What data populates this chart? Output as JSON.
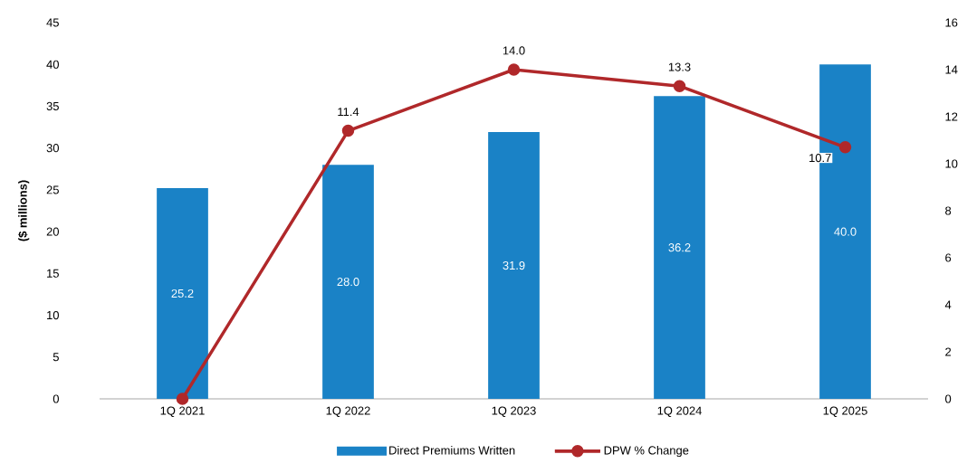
{
  "chart_data": {
    "type": "bar",
    "ylabel": "($ millions)",
    "categories": [
      "1Q 2021",
      "1Q 2022",
      "1Q 2023",
      "1Q 2024",
      "1Q 2025"
    ],
    "series": [
      {
        "name": "Direct Premiums Written",
        "color": "#1a82c6",
        "values": [
          25.2,
          28.0,
          31.9,
          36.2,
          40.0
        ],
        "value_labels": [
          "25.2",
          "28.0",
          "31.9",
          "36.2",
          "40.0"
        ]
      },
      {
        "name": "DPW % Change",
        "type": "line",
        "axis": "y2",
        "color": "#b0282a",
        "values": [
          0,
          11.4,
          14.0,
          13.3,
          10.7
        ],
        "value_labels": [
          null,
          "11.4",
          "14.0",
          "13.3",
          "10.7"
        ]
      }
    ],
    "ylim": [
      0,
      45
    ],
    "yticks": [
      0,
      5,
      10,
      15,
      20,
      25,
      30,
      35,
      40,
      45
    ],
    "y2lim": [
      0,
      16
    ],
    "y2ticks": [
      0,
      2,
      4,
      6,
      8,
      10,
      12,
      14,
      16
    ],
    "legend": "bottom",
    "marker": "circle",
    "line_style": "solid",
    "grid": false
  }
}
